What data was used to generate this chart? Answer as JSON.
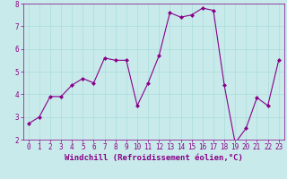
{
  "x": [
    0,
    1,
    2,
    3,
    4,
    5,
    6,
    7,
    8,
    9,
    10,
    11,
    12,
    13,
    14,
    15,
    16,
    17,
    18,
    19,
    20,
    21,
    22,
    23
  ],
  "y": [
    2.7,
    3.0,
    3.9,
    3.9,
    4.4,
    4.7,
    4.5,
    5.6,
    5.5,
    5.5,
    3.5,
    4.5,
    5.7,
    7.6,
    7.4,
    7.5,
    7.8,
    7.7,
    4.4,
    1.85,
    2.5,
    3.85,
    3.5,
    5.5
  ],
  "line_color": "#880088",
  "marker": "D",
  "marker_size": 2,
  "linewidth": 0.8,
  "xlabel": "Windchill (Refroidissement éolien,°C)",
  "xlabel_fontsize": 6.5,
  "ylim": [
    2,
    8
  ],
  "xlim_min": -0.5,
  "xlim_max": 23.5,
  "yticks": [
    2,
    3,
    4,
    5,
    6,
    7,
    8
  ],
  "xticks": [
    0,
    1,
    2,
    3,
    4,
    5,
    6,
    7,
    8,
    9,
    10,
    11,
    12,
    13,
    14,
    15,
    16,
    17,
    18,
    19,
    20,
    21,
    22,
    23
  ],
  "grid_color": "#aadddd",
  "background_color": "#c8eaea",
  "tick_fontsize": 5.5,
  "line_color_spine": "#880088"
}
